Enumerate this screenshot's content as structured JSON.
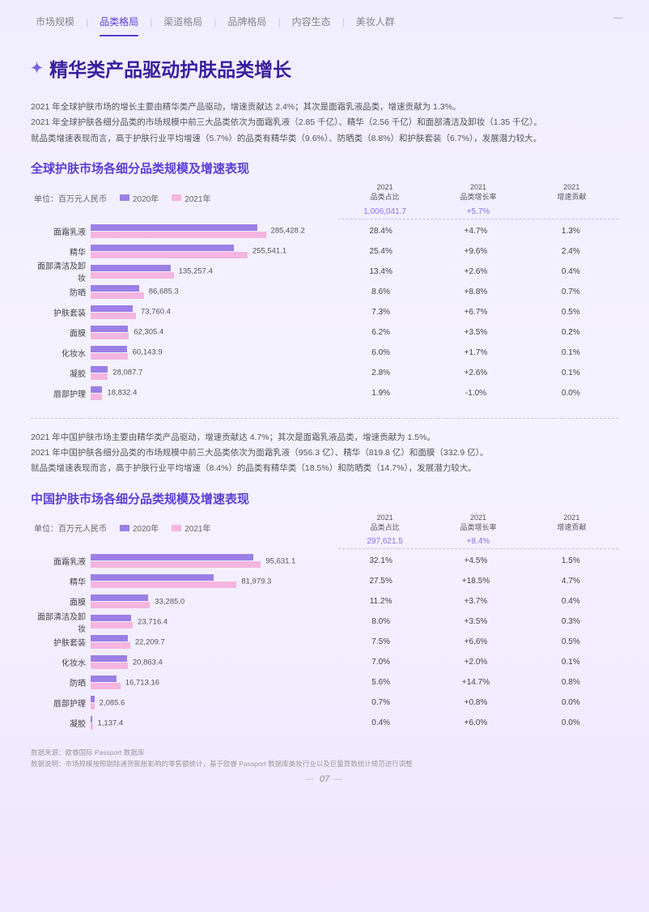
{
  "tabs": {
    "items": [
      "市场规模",
      "品类格局",
      "渠道格局",
      "品牌格局",
      "内容生态",
      "美妆人群"
    ],
    "active_index": 1
  },
  "title": "精华类产品驱动护肤品类增长",
  "intro1": [
    "2021 年全球护肤市场的增长主要由精华类产品驱动，增速贡献达 2.4%；其次是面霜乳液品类，增速贡献为 1.3%。",
    "2021 年全球护肤各细分品类的市场规模中前三大品类依次为面霜乳液（2.85 千亿）、精华（2.56 千亿）和面部清洁及卸妆（1.35 千亿）。",
    "就品类增速表现而言，高于护肤行业平均增速（5.7%）的品类有精华类（9.6%）、防晒类（8.8%）和护肤套装（6.7%），发展潜力较大。"
  ],
  "colors": {
    "bar_2020": "#9b7fe6",
    "bar_2021": "#f4b5e0",
    "accent": "#5b3fd6",
    "total_text": "#8a6fe8"
  },
  "table_headers": {
    "col1_line1": "2021",
    "col1_line2": "品类占比",
    "col2_line1": "2021",
    "col2_line2": "品类增长率",
    "col3_line1": "2021",
    "col3_line2": "增速贡献"
  },
  "legend": {
    "y2020": "2020年",
    "y2021": "2021年"
  },
  "unit": "单位：百万元人民币",
  "chart1": {
    "title": "全球护肤市场各细分品类规模及增速表现",
    "total": {
      "value": "1,006,041.7",
      "growth": "+5.7%",
      "contrib": ""
    },
    "max": 290000,
    "rows": [
      {
        "label": "面霜乳液",
        "v2020": 272000,
        "v2021": 285428.2,
        "val": "285,428.2",
        "share": "28.4%",
        "growth": "+4.7%",
        "contrib": "1.3%"
      },
      {
        "label": "精华",
        "v2020": 233000,
        "v2021": 255541.1,
        "val": "255,541.1",
        "share": "25.4%",
        "growth": "+9.6%",
        "contrib": "2.4%"
      },
      {
        "label": "面部清洁及卸妆",
        "v2020": 131000,
        "v2021": 135257.4,
        "val": "135,257.4",
        "share": "13.4%",
        "growth": "+2.6%",
        "contrib": "0.4%"
      },
      {
        "label": "防晒",
        "v2020": 79700,
        "v2021": 86685.3,
        "val": "86,685.3",
        "share": "8.6%",
        "growth": "+8.8%",
        "contrib": "0.7%"
      },
      {
        "label": "护肤套装",
        "v2020": 69100,
        "v2021": 73760.4,
        "val": "73,760.4",
        "share": "7.3%",
        "growth": "+6.7%",
        "contrib": "0.5%"
      },
      {
        "label": "面膜",
        "v2020": 60200,
        "v2021": 62305.4,
        "val": "62,305.4",
        "share": "6.2%",
        "growth": "+3.5%",
        "contrib": "0.2%"
      },
      {
        "label": "化妆水",
        "v2020": 59100,
        "v2021": 60143.9,
        "val": "60,143.9",
        "share": "6.0%",
        "growth": "+1.7%",
        "contrib": "0.1%"
      },
      {
        "label": "凝胶",
        "v2020": 27300,
        "v2021": 28087.7,
        "val": "28,087.7",
        "share": "2.8%",
        "growth": "+2.6%",
        "contrib": "0.1%"
      },
      {
        "label": "唇部护理",
        "v2020": 19000,
        "v2021": 18832.4,
        "val": "18,832.4",
        "share": "1.9%",
        "growth": "-1.0%",
        "contrib": "0.0%"
      }
    ]
  },
  "intro2": [
    "2021 年中国护肤市场主要由精华类产品驱动，增速贡献达 4.7%；其次是面霜乳液品类，增速贡献为 1.5%。",
    "2021 年中国护肤各细分品类的市场规模中前三大品类依次为面霜乳液（956.3 亿）、精华（819.8 亿）和面膜（332.9 亿）。",
    "就品类增速表现而言，高于护肤行业平均增速（8.4%）的品类有精华类（18.5%）和防晒类（14.7%），发展潜力较大。"
  ],
  "chart2": {
    "title": "中国护肤市场各细分品类规模及增速表现",
    "total": {
      "value": "297,621.5",
      "growth": "+8.4%",
      "contrib": ""
    },
    "max": 100000,
    "rows": [
      {
        "label": "面霜乳液",
        "v2020": 91500,
        "v2021": 95631.1,
        "val": "95,631.1",
        "share": "32.1%",
        "growth": "+4.5%",
        "contrib": "1.5%"
      },
      {
        "label": "精华",
        "v2020": 69200,
        "v2021": 81979.3,
        "val": "81,979.3",
        "share": "27.5%",
        "growth": "+18.5%",
        "contrib": "4.7%"
      },
      {
        "label": "面膜",
        "v2020": 32100,
        "v2021": 33285.0,
        "val": "33,285.0",
        "share": "11.2%",
        "growth": "+3.7%",
        "contrib": "0.4%"
      },
      {
        "label": "面部清洁及卸妆",
        "v2020": 22900,
        "v2021": 23716.4,
        "val": "23,716.4",
        "share": "8.0%",
        "growth": "+3.5%",
        "contrib": "0.3%"
      },
      {
        "label": "护肤套装",
        "v2020": 20800,
        "v2021": 22209.7,
        "val": "22,209.7",
        "share": "7.5%",
        "growth": "+6.6%",
        "contrib": "0.5%"
      },
      {
        "label": "化妆水",
        "v2020": 20400,
        "v2021": 20863.4,
        "val": "20,863.4",
        "share": "7.0%",
        "growth": "+2.0%",
        "contrib": "0.1%"
      },
      {
        "label": "防晒",
        "v2020": 14600,
        "v2021": 16713.16,
        "val": "16,713.16",
        "share": "5.6%",
        "growth": "+14.7%",
        "contrib": "0.8%"
      },
      {
        "label": "唇部护理",
        "v2020": 2070,
        "v2021": 2085.6,
        "val": "2,085.6",
        "share": "0.7%",
        "growth": "+0.8%",
        "contrib": "0.0%"
      },
      {
        "label": "凝胶",
        "v2020": 1070,
        "v2021": 1137.4,
        "val": "1,137.4",
        "share": "0.4%",
        "growth": "+6.0%",
        "contrib": "0.0%"
      }
    ]
  },
  "footer": {
    "source_label": "数据来源：",
    "source": "欧睿国际 Passport 数据库",
    "note_label": "数据说明：",
    "note": "市场规模按照剔除通货膨胀影响的零售额统计，基于欧睿 Passport 数据库美妆行业以及巨量算数统计规范进行调整"
  },
  "page_number": "07"
}
